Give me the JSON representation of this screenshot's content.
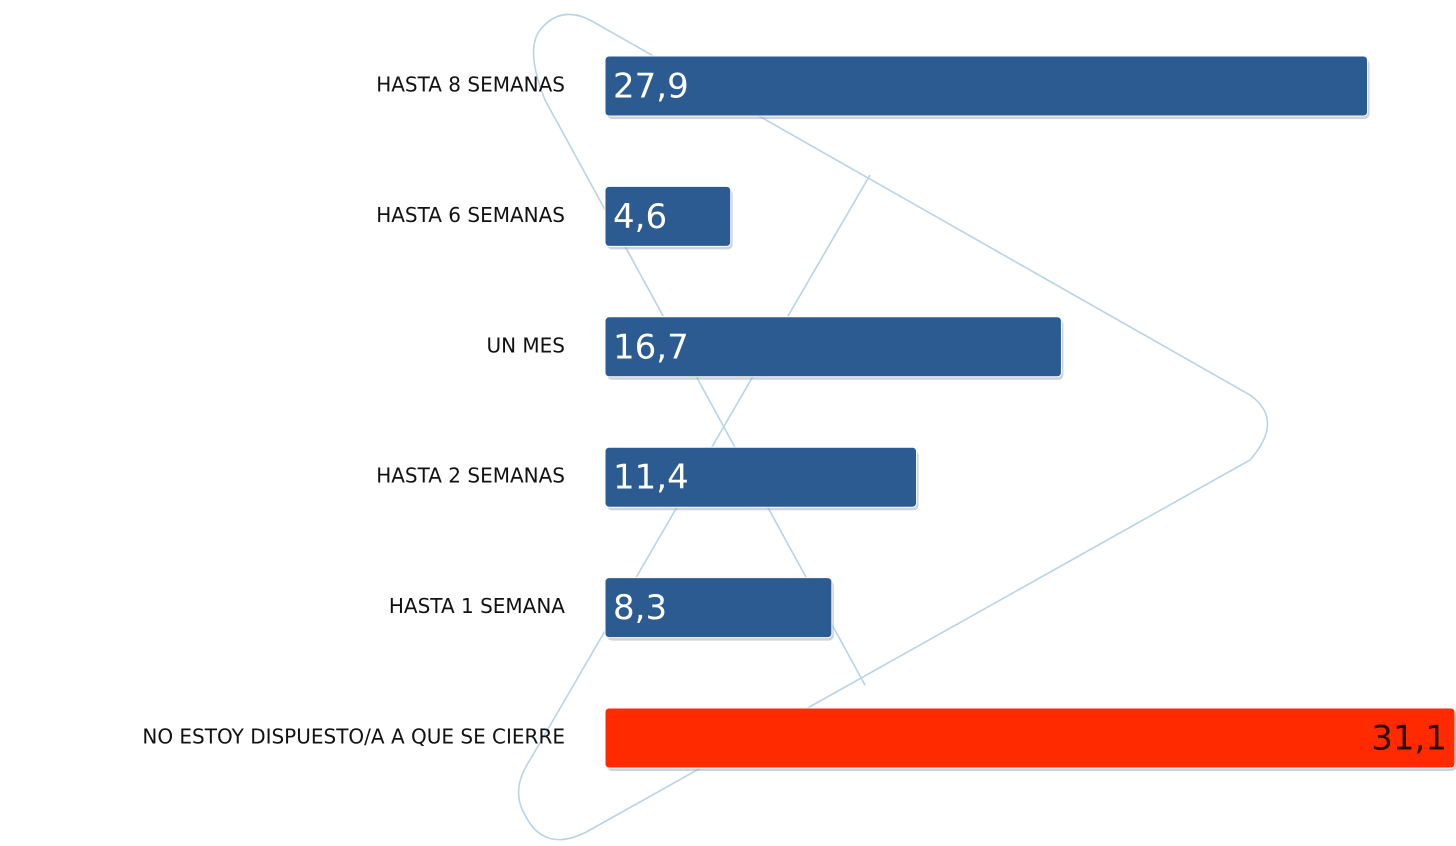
{
  "chart_data": {
    "type": "bar",
    "orientation": "horizontal",
    "categories": [
      "HASTA 8 SEMANAS",
      "HASTA 6 SEMANAS",
      "UN MES",
      "HASTA 2 SEMANAS",
      "HASTA 1 SEMANA",
      "NO ESTOY DISPUESTO/A A QUE SE CIERRE"
    ],
    "values": [
      27.9,
      4.6,
      16.7,
      11.4,
      8.3,
      31.1
    ],
    "value_labels": [
      "27,9",
      "4,6",
      "16,7",
      "11,4",
      "8,3",
      "31,1"
    ],
    "colors": [
      "#2b5b91",
      "#2b5b91",
      "#2b5b91",
      "#2b5b91",
      "#2b5b91",
      "#ff2a00"
    ]
  }
}
